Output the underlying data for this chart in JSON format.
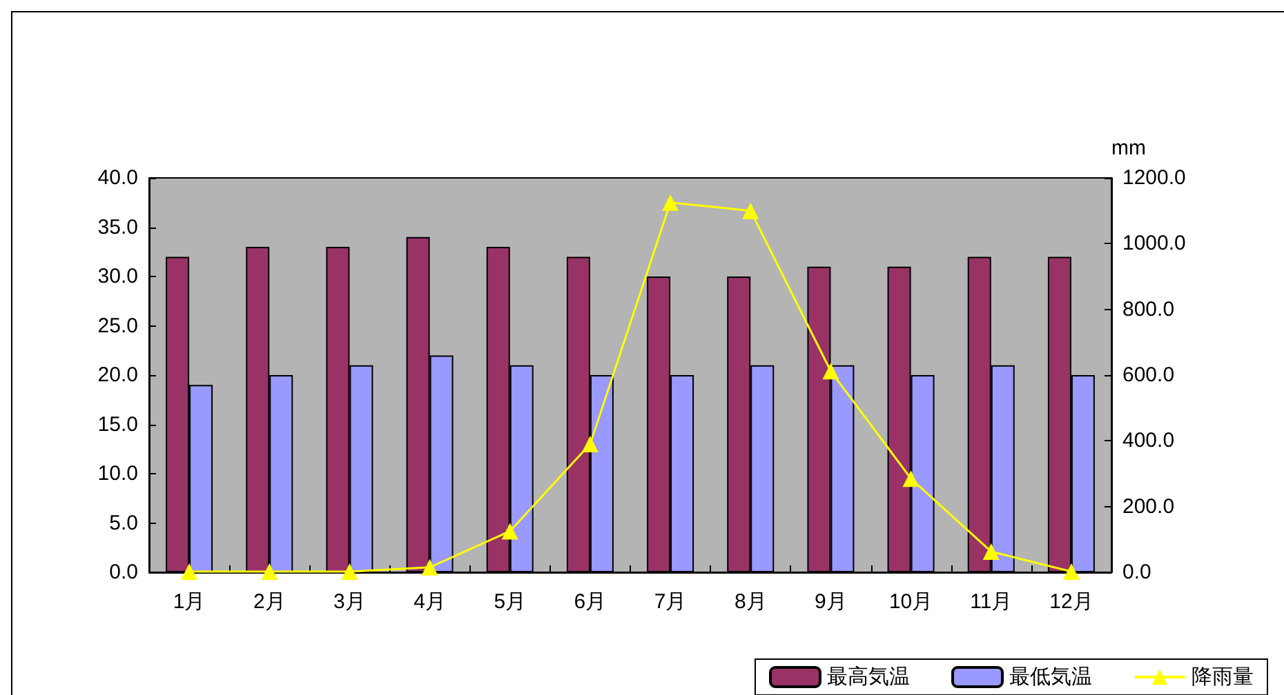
{
  "chart_data": {
    "type": "bar",
    "categories": [
      "1月",
      "2月",
      "3月",
      "4月",
      "5月",
      "6月",
      "7月",
      "8月",
      "9月",
      "10月",
      "11月",
      "12月"
    ],
    "series": [
      {
        "name": "最高気温",
        "color": "#993366",
        "values": [
          32,
          33,
          33,
          34,
          33,
          32,
          30,
          30,
          31,
          31,
          32,
          32
        ]
      },
      {
        "name": "最低気温",
        "color": "#9999ff",
        "values": [
          19,
          20,
          21,
          22,
          21,
          20,
          20,
          21,
          21,
          20,
          21,
          20
        ]
      },
      {
        "name": "降雨量",
        "type": "line",
        "axis": "y2",
        "color": "#ffff00",
        "marker": "triangle",
        "values": [
          2,
          2,
          2,
          15,
          125,
          390,
          1125,
          1100,
          612,
          285,
          63,
          2
        ]
      }
    ],
    "ylim": [
      0,
      40
    ],
    "yticks": [
      {
        "value": 0,
        "label": "0.0"
      },
      {
        "value": 5,
        "label": "5.0"
      },
      {
        "value": 10,
        "label": "10.0"
      },
      {
        "value": 15,
        "label": "15.0"
      },
      {
        "value": 20,
        "label": "20.0"
      },
      {
        "value": 25,
        "label": "25.0"
      },
      {
        "value": 30,
        "label": "30.0"
      },
      {
        "value": 35,
        "label": "35.0"
      },
      {
        "value": 40,
        "label": "40.0"
      }
    ],
    "y2lim": [
      0,
      1200
    ],
    "y2ticks": [
      {
        "value": 0,
        "label": "0.0"
      },
      {
        "value": 200,
        "label": "200.0"
      },
      {
        "value": 400,
        "label": "400.0"
      },
      {
        "value": 600,
        "label": "600.0"
      },
      {
        "value": 800,
        "label": "800.0"
      },
      {
        "value": 1000,
        "label": "1000.0"
      },
      {
        "value": 1200,
        "label": "1200.0"
      }
    ],
    "y2label": "mm",
    "grid": false,
    "legend": "bottom right"
  }
}
